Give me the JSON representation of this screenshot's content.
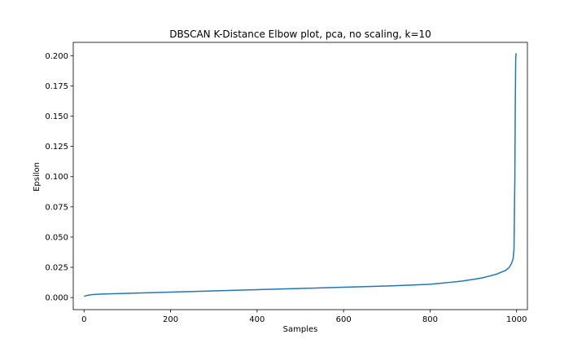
{
  "chart_data": {
    "type": "line",
    "title": "DBSCAN K-Distance Elbow plot, pca, no scaling, k=10",
    "xlabel": "Samples",
    "ylabel": "Epsilon",
    "xlim": [
      -25,
      1025
    ],
    "ylim": [
      -0.01,
      0.211
    ],
    "xticks": [
      0,
      200,
      400,
      600,
      800,
      1000
    ],
    "yticks": [
      0.0,
      0.025,
      0.05,
      0.075,
      0.1,
      0.125,
      0.15,
      0.175,
      0.2
    ],
    "xtick_labels": [
      "0",
      "200",
      "400",
      "600",
      "800",
      "1000"
    ],
    "ytick_labels": [
      "0.000",
      "0.025",
      "0.050",
      "0.075",
      "0.100",
      "0.125",
      "0.150",
      "0.175",
      "0.200"
    ],
    "grid": false,
    "series": [
      {
        "color": "#1f77b4",
        "x": [
          0,
          5,
          10,
          20,
          50,
          100,
          150,
          200,
          250,
          300,
          350,
          400,
          450,
          500,
          550,
          600,
          650,
          700,
          750,
          800,
          825,
          850,
          875,
          900,
          920,
          940,
          955,
          965,
          975,
          983,
          988,
          990,
          992,
          994,
          996,
          997,
          998,
          999
        ],
        "y": [
          0.001,
          0.0015,
          0.002,
          0.0025,
          0.003,
          0.0035,
          0.004,
          0.0045,
          0.005,
          0.0055,
          0.006,
          0.0065,
          0.007,
          0.0075,
          0.008,
          0.0085,
          0.009,
          0.0095,
          0.0102,
          0.011,
          0.0118,
          0.0127,
          0.0137,
          0.015,
          0.0162,
          0.018,
          0.0195,
          0.021,
          0.0225,
          0.025,
          0.028,
          0.03,
          0.032,
          0.04,
          0.1,
          0.16,
          0.198,
          0.202
        ]
      }
    ]
  }
}
